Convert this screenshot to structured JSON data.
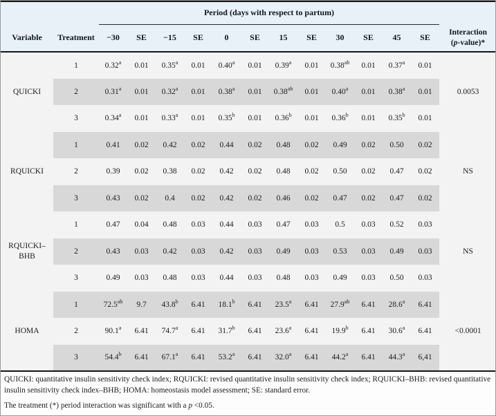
{
  "table": {
    "period_header": "Period (days with respect to partum)",
    "headers": {
      "variable": "Variable",
      "treatment": "Treatment",
      "interaction_open": "(",
      "interaction_p": "p",
      "interaction_rest": "-value)*",
      "interaction_line1": "Interaction"
    },
    "period_cols": [
      "−30",
      "SE",
      "−15",
      "SE",
      "0",
      "SE",
      "15",
      "SE",
      "30",
      "SE",
      "45",
      "SE"
    ],
    "groups": [
      {
        "variable": "QUICKI",
        "interaction": "0.0053",
        "rows": [
          {
            "treatment": "1",
            "cells": [
              "0.32^a",
              "0.01",
              "0.35^a",
              "0.01",
              "0.40^a",
              "0.01",
              "0.39^a",
              "0.01",
              "0.38^ab",
              "0.01",
              "0.37^a",
              "0.01"
            ]
          },
          {
            "treatment": "2",
            "cells": [
              "0.31^a",
              "0.01",
              "0.32^a",
              "0.01",
              "0.38^a",
              "0.01",
              "0.38^ab",
              "0.01",
              "0.40^a",
              "0.01",
              "0.38^a",
              "0.01"
            ]
          },
          {
            "treatment": "3",
            "cells": [
              "0.34^a",
              "0.01",
              "0.33^a",
              "0.01",
              "0.35^b",
              "0.01",
              "0.36^b",
              "0.01",
              "0.36^b",
              "0.01",
              "0.35^b",
              "0.01"
            ]
          }
        ]
      },
      {
        "variable": "RQUICKI",
        "interaction": "NS",
        "rows": [
          {
            "treatment": "1",
            "cells": [
              "0.41",
              "0.02",
              "0.42",
              "0.02",
              "0.44",
              "0.02",
              "0.48",
              "0.02",
              "0.49",
              "0.02",
              "0.50",
              "0.02"
            ]
          },
          {
            "treatment": "2",
            "cells": [
              "0.39",
              "0.02",
              "0.38",
              "0.02",
              "0.42",
              "0.02",
              "0.48",
              "0.02",
              "0.50",
              "0.02",
              "0.47",
              "0.02"
            ]
          },
          {
            "treatment": "3",
            "cells": [
              "0.43",
              "0.02",
              "0.4",
              "0.02",
              "0.42",
              "0.02",
              "0.46",
              "0.02",
              "0.47",
              "0.02",
              "0.47",
              "0.02"
            ]
          }
        ]
      },
      {
        "variable": "RQUICKI–BHB",
        "interaction": "NS",
        "rows": [
          {
            "treatment": "1",
            "cells": [
              "0.47",
              "0.04",
              "0.48",
              "0.03",
              "0.44",
              "0.03",
              "0.47",
              "0.03",
              "0.5",
              "0.03",
              "0.52",
              "0.03"
            ]
          },
          {
            "treatment": "2",
            "cells": [
              "0.43",
              "0.03",
              "0.42",
              "0.03",
              "0.42",
              "0.03",
              "0.49",
              "0.03",
              "0.53",
              "0.03",
              "0.49",
              "0.03"
            ]
          },
          {
            "treatment": "3",
            "cells": [
              "0.49",
              "0.03",
              "0.48",
              "0.03",
              "0.44",
              "0.03",
              "0.48",
              "0.03",
              "0.49",
              "0.03",
              "0.50",
              "0.03"
            ]
          }
        ]
      },
      {
        "variable": "HOMA",
        "interaction": "<0.0001",
        "rows": [
          {
            "treatment": "1",
            "cells": [
              "72.5^ab",
              "9.7",
              "43.8^b",
              "6.41",
              "18.1^b",
              "6.41",
              "23.5^a",
              "6.41",
              "27.9^ab",
              "6.41",
              "28.6^a",
              "6.41"
            ]
          },
          {
            "treatment": "2",
            "cells": [
              "90.1^a",
              "6.41",
              "74.7^a",
              "6.41",
              "31.7^b",
              "6.41",
              "23.6^a",
              "6.41",
              "19.9^b",
              "6.41",
              "30.6^a",
              "6.41"
            ]
          },
          {
            "treatment": "3",
            "cells": [
              "54.4^b",
              "6.41",
              "67.1^a",
              "6.41",
              "53.2^a",
              "6.41",
              "32.0^a",
              "6.41",
              "44.2^a",
              "6.41",
              "44.3^a",
              "6,41"
            ]
          }
        ]
      }
    ]
  },
  "footnotes": {
    "abbreviations": "QUICKI: quantitative insulin sensitivity check index; RQUICKI: revised quantitative insulin sensitivity check index; RQUICKI–BHB: revised quantitative insulin sensitivity check index–BHB; HOMA: homeostasis model assessment; SE: standard error.",
    "significance_prefix": "The treatment (*) period interaction was significant with a ",
    "significance_p": "p",
    "significance_suffix": " <0.05."
  },
  "colors": {
    "header_bg": "#e9f1f8",
    "row_light": "#f3f3f3",
    "row_stripe": "#d8d8d8",
    "rule": "#141414",
    "text": "#1b1b1b"
  }
}
